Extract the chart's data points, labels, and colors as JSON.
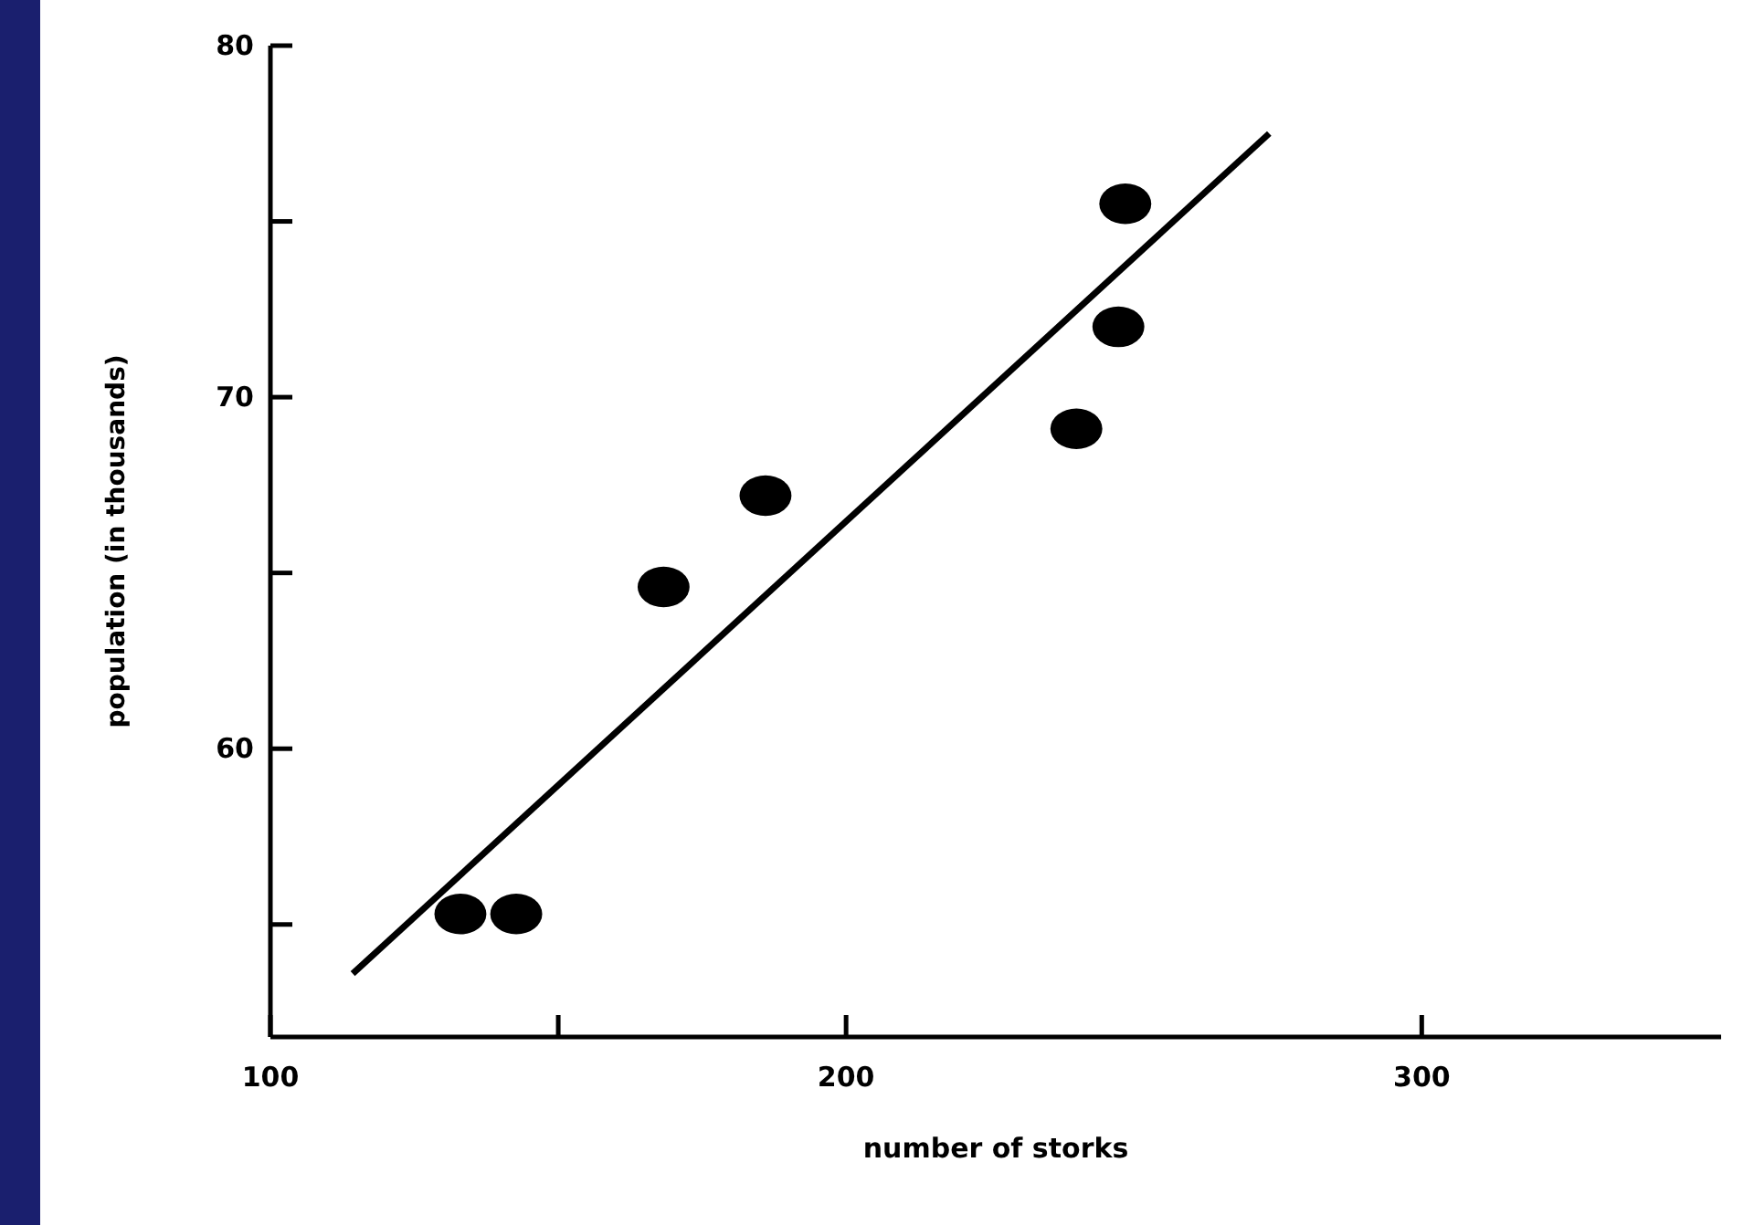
{
  "chart_data": {
    "type": "scatter",
    "xlabel": "number of storks",
    "ylabel": "population (in thousands)",
    "xlim": [
      100,
      352
    ],
    "ylim": [
      51.8,
      80
    ],
    "xticks": [
      100,
      {
        "value": 150,
        "label": null
      },
      200,
      300
    ],
    "yticks": [
      {
        "value": 55,
        "label": null
      },
      60,
      {
        "value": 65,
        "label": null
      },
      70,
      {
        "value": 75,
        "label": null
      },
      80
    ],
    "grid": false,
    "series": [
      {
        "marker": "circle",
        "color": "#000000",
        "x": [
          133,
          142.7,
          168.3,
          186,
          240,
          247.3,
          248.5
        ],
        "values": [
          55.3,
          55.3,
          64.6,
          67.2,
          69.1,
          72,
          75.5
        ]
      },
      {
        "type": "line",
        "marker": "none",
        "color": "#000000",
        "x": [
          114.3,
          273.5
        ],
        "values": [
          53.6,
          77.5
        ]
      }
    ]
  }
}
